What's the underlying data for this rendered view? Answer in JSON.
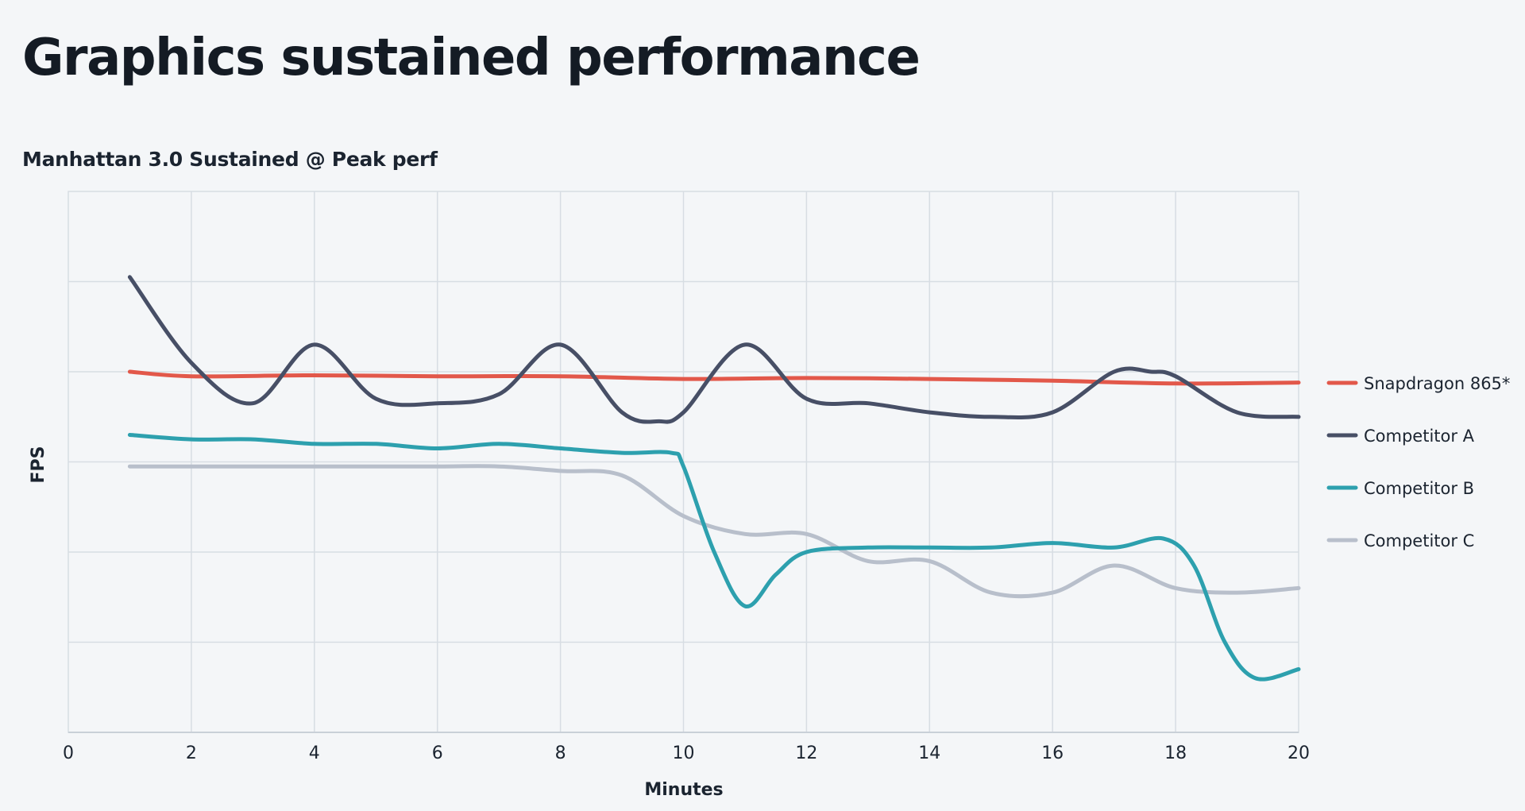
{
  "page": {
    "title": "Graphics sustained performance"
  },
  "chart_data": {
    "type": "line",
    "title": "Manhattan 3.0 Sustained @ Peak perf",
    "xlabel": "Minutes",
    "ylabel": "FPS",
    "xlim": [
      0,
      20
    ],
    "ylim": [
      0,
      6
    ],
    "x_ticks": [
      "0",
      "2",
      "4",
      "6",
      "8",
      "10",
      "12",
      "14",
      "16",
      "18",
      "20"
    ],
    "y_tick_labels_shown": false,
    "grid": true,
    "legend_position": "right",
    "series": [
      {
        "name": "Snapdragon 865*",
        "color": "#e2584a",
        "x": [
          1,
          2,
          4,
          6,
          8,
          10,
          12,
          14,
          16,
          18,
          20
        ],
        "y": [
          4.0,
          3.95,
          3.96,
          3.95,
          3.95,
          3.92,
          3.93,
          3.92,
          3.9,
          3.87,
          3.88
        ]
      },
      {
        "name": "Competitor A",
        "color": "#474f66",
        "x": [
          1,
          2,
          3,
          4,
          5,
          6,
          7,
          8,
          9,
          9.6,
          10,
          11,
          12,
          13,
          14,
          15,
          16,
          17,
          17.6,
          18,
          19,
          20
        ],
        "y": [
          5.05,
          4.1,
          3.65,
          4.3,
          3.7,
          3.65,
          3.75,
          4.3,
          3.55,
          3.45,
          3.55,
          4.3,
          3.7,
          3.65,
          3.55,
          3.5,
          3.55,
          4.0,
          4.0,
          3.95,
          3.55,
          3.5
        ]
      },
      {
        "name": "Competitor B",
        "color": "#2da0ae",
        "x": [
          1,
          2,
          3,
          4,
          5,
          6,
          7,
          8,
          9,
          9.8,
          10,
          10.5,
          11,
          11.5,
          12,
          13,
          14,
          15,
          16,
          17,
          17.8,
          18.3,
          18.8,
          19.3,
          20
        ],
        "y": [
          3.3,
          3.25,
          3.25,
          3.2,
          3.2,
          3.15,
          3.2,
          3.15,
          3.1,
          3.1,
          2.95,
          2.0,
          1.4,
          1.75,
          2.0,
          2.05,
          2.05,
          2.05,
          2.1,
          2.05,
          2.15,
          1.85,
          1.0,
          0.6,
          0.7
        ]
      },
      {
        "name": "Competitor C",
        "color": "#b8bfcb",
        "x": [
          1,
          2,
          3,
          4,
          5,
          6,
          7,
          8,
          9,
          10,
          11,
          12,
          13,
          14,
          15,
          16,
          17,
          18,
          19,
          20
        ],
        "y": [
          2.95,
          2.95,
          2.95,
          2.95,
          2.95,
          2.95,
          2.95,
          2.9,
          2.85,
          2.4,
          2.2,
          2.2,
          1.9,
          1.9,
          1.55,
          1.55,
          1.85,
          1.6,
          1.55,
          1.6
        ]
      }
    ]
  }
}
